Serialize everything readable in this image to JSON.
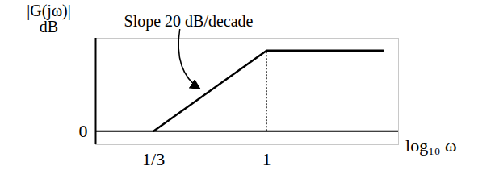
{
  "chart_data": {
    "type": "line",
    "x_label": "log₁₀ ω",
    "y_label": "|G(jω)|\ndB",
    "annotations": [
      "Slope 20 dB/decade"
    ],
    "x": [
      0.3333,
      1,
      3.1
    ],
    "values": [
      0,
      9.54,
      9.54
    ],
    "color": "#000000",
    "log": "x",
    "xlim": [
      0.19,
      3.6
    ],
    "ylim": [
      -1.6,
      11
    ],
    "xticks": [
      {
        "value": 0.3333,
        "label": "1/3"
      },
      1
    ],
    "yticks": [
      0
    ],
    "grid": false
  }
}
